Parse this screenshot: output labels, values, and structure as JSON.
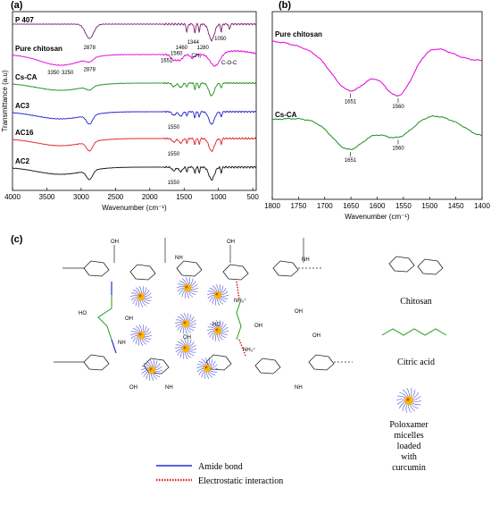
{
  "panels": {
    "a": "(a)",
    "b": "(b)",
    "c": "(c)"
  },
  "chart_data": [
    {
      "type": "line",
      "panel": "(a)",
      "xlabel": "Wavenumber (cm⁻¹)",
      "ylabel": "Transmittance (a.u)",
      "xlim": [
        4000,
        450
      ],
      "xticks": [
        4000,
        3500,
        3000,
        2500,
        2000,
        1500,
        1000,
        500
      ],
      "series": [
        {
          "name": "P 407",
          "color": "#7a1f6e",
          "offset": 0.93
        },
        {
          "name": "Pure chitosan",
          "color": "#e000e0",
          "offset": 0.76
        },
        {
          "name": "Cs-CA",
          "color": "#1f8f1f",
          "offset": 0.6
        },
        {
          "name": "AC3",
          "color": "#1f1fd0",
          "offset": 0.44
        },
        {
          "name": "AC16",
          "color": "#e02020",
          "offset": 0.29
        },
        {
          "name": "AC2",
          "color": "#111111",
          "offset": 0.13
        }
      ],
      "annotations": [
        {
          "text": "2878",
          "x": 2878,
          "series": "P 407"
        },
        {
          "text": "1460",
          "x": 1460,
          "series": "P 407"
        },
        {
          "text": "1344",
          "x": 1344,
          "series": "P 407"
        },
        {
          "text": "1280",
          "x": 1280,
          "series": "P 407"
        },
        {
          "text": "1050",
          "x": 1050,
          "series": "P 407"
        },
        {
          "text": "3350",
          "x": 3350,
          "series": "Pure chitosan"
        },
        {
          "text": "3250",
          "x": 3250,
          "series": "Pure chitosan"
        },
        {
          "text": "2878",
          "x": 2878,
          "series": "Pure chitosan"
        },
        {
          "text": "1651",
          "x": 1651,
          "series": "Pure chitosan",
          "color": "#e02020"
        },
        {
          "text": "1560",
          "x": 1560,
          "series": "Pure chitosan",
          "color": "#e02020"
        },
        {
          "text": "CH₃",
          "x": 1400,
          "series": "Pure chitosan"
        },
        {
          "text": "C-O-C",
          "x": 1000,
          "series": "Pure chitosan"
        },
        {
          "text": "1550",
          "x": 1550,
          "series": "AC3",
          "color": "#e02020"
        },
        {
          "text": "1550",
          "x": 1550,
          "series": "AC16",
          "color": "#e02020"
        },
        {
          "text": "1550",
          "x": 1550,
          "series": "AC2",
          "color": "#e02020"
        }
      ]
    },
    {
      "type": "line",
      "panel": "(b)",
      "xlabel": "Wavenumber (cm⁻¹)",
      "xlim": [
        1800,
        1400
      ],
      "xticks": [
        1800,
        1750,
        1700,
        1650,
        1600,
        1550,
        1500,
        1450,
        1400
      ],
      "series": [
        {
          "name": "Pure chitosan",
          "color": "#e000e0"
        },
        {
          "name": "Cs-CA",
          "color": "#1f8f1f"
        }
      ],
      "annotations": [
        {
          "text": "1651",
          "x": 1651,
          "series": "Pure chitosan"
        },
        {
          "text": "1560",
          "x": 1560,
          "series": "Pure chitosan"
        },
        {
          "text": "1651",
          "x": 1651,
          "series": "Cs-CA"
        },
        {
          "text": "1560",
          "x": 1560,
          "series": "Cs-CA"
        }
      ]
    }
  ],
  "scheme": {
    "labels": {
      "chitosan": "Chitosan",
      "citric_acid": "Citric acid",
      "micelles": [
        "Poloxamer",
        "micelles",
        "loaded",
        "with",
        "curcumin"
      ],
      "amide_bond": "Amide bond",
      "electrostatic": "Electrostatic interaction",
      "nh3": "NH₃⁺",
      "oh": "OH",
      "nh": "NH",
      "ho": "HO"
    },
    "colors": {
      "amide": "#2b2bd0",
      "electrostatic": "#e02020",
      "citric": "#1f9f1f",
      "micelle_core": "#f5b800",
      "micelle_arms": "#5050d0"
    }
  }
}
